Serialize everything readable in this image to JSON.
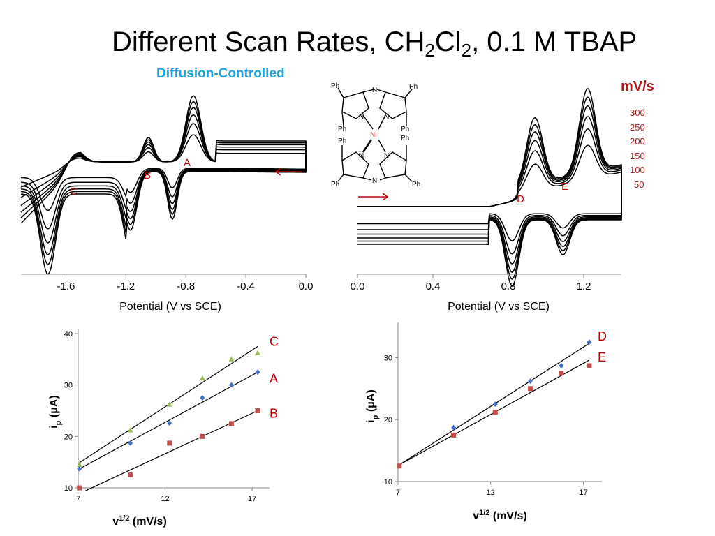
{
  "title": {
    "part1": "Different Scan Rates, CH",
    "sub1": "2",
    "part2": "Cl",
    "sub2": "2",
    "part3": ", 0.1 M TBAP"
  },
  "subtitle": "Diffusion-Controlled",
  "scan_rates": {
    "unit": "mV/s",
    "values": [
      "300",
      "250",
      "200",
      "150",
      "100",
      "50"
    ]
  },
  "molecule": {
    "substituent": "Ph",
    "bridge_atom": "N",
    "pyrrole_atom": "N",
    "metal": "Ni"
  },
  "colors": {
    "title": "#000000",
    "subtitle": "#1aa3e0",
    "annotation": "#b01c1c",
    "series_blue": "#4472c4",
    "series_red": "#c0504d",
    "series_green": "#9bbb59"
  },
  "chart_data": [
    {
      "type": "line",
      "xlabel": "Potential (V vs SCE)",
      "x_ticks": [
        "-1.6",
        "-1.2",
        "-0.8",
        "-0.4",
        "0.0"
      ],
      "xlim": [
        -1.9,
        0.0
      ],
      "scan_direction_arrow": "right-to-left",
      "peak_labels": [
        "A",
        "B",
        "C"
      ],
      "series": [
        {
          "scan_rate": 300,
          "y_scale": 1.0
        },
        {
          "scan_rate": 250,
          "y_scale": 0.91
        },
        {
          "scan_rate": 200,
          "y_scale": 0.82
        },
        {
          "scan_rate": 150,
          "y_scale": 0.71
        },
        {
          "scan_rate": 100,
          "y_scale": 0.58
        },
        {
          "scan_rate": 50,
          "y_scale": 0.41
        }
      ],
      "grid": false
    },
    {
      "type": "line",
      "xlabel": "Potential (V vs SCE)",
      "x_ticks": [
        "0.0",
        "0.4",
        "0.8",
        "1.2"
      ],
      "xlim": [
        0.0,
        1.4
      ],
      "scan_direction_arrow": "left-to-right",
      "peak_labels": [
        "D",
        "E"
      ],
      "series": [
        {
          "scan_rate": 300,
          "y_scale": 1.0
        },
        {
          "scan_rate": 250,
          "y_scale": 0.91
        },
        {
          "scan_rate": 200,
          "y_scale": 0.82
        },
        {
          "scan_rate": 150,
          "y_scale": 0.71
        },
        {
          "scan_rate": 100,
          "y_scale": 0.58
        },
        {
          "scan_rate": 50,
          "y_scale": 0.41
        }
      ],
      "grid": false
    },
    {
      "type": "scatter",
      "xlabel": "v1/2 (mV/s)",
      "ylabel": "ip (μA)",
      "x_ticks": [
        "7",
        "12",
        "17"
      ],
      "y_ticks": [
        "10",
        "20",
        "30",
        "40"
      ],
      "xlim": [
        7,
        18
      ],
      "ylim": [
        10,
        40
      ],
      "grid": false,
      "series": [
        {
          "name": "C",
          "color": "#9bbb59",
          "marker": "triangle",
          "x": [
            7.07,
            10.0,
            12.25,
            14.14,
            15.81,
            17.32
          ],
          "y": [
            14.5,
            21.2,
            26.2,
            31.3,
            35.0,
            36.2
          ],
          "fit": [
            [
              7.07,
              14.9
            ],
            [
              17.32,
              37.5
            ]
          ]
        },
        {
          "name": "A",
          "color": "#4472c4",
          "marker": "diamond",
          "x": [
            7.07,
            10.0,
            12.25,
            14.14,
            15.81,
            17.32
          ],
          "y": [
            13.7,
            18.7,
            22.6,
            27.5,
            30.0,
            32.5
          ],
          "fit": [
            [
              7.07,
              13.7
            ],
            [
              17.32,
              32.5
            ]
          ]
        },
        {
          "name": "B",
          "color": "#c0504d",
          "marker": "square",
          "x": [
            7.07,
            10.0,
            12.25,
            14.14,
            15.81,
            17.32
          ],
          "y": [
            10.0,
            12.5,
            18.7,
            20.0,
            22.5,
            25.0
          ],
          "fit": [
            [
              7.4,
              9.4
            ],
            [
              17.32,
              25.0
            ]
          ]
        }
      ]
    },
    {
      "type": "scatter",
      "xlabel": "v1/2 (mV/s)",
      "ylabel": "ip (μA)",
      "x_ticks": [
        "7",
        "12",
        "17"
      ],
      "y_ticks": [
        "10",
        "20",
        "30"
      ],
      "xlim": [
        7,
        18
      ],
      "ylim": [
        10,
        35
      ],
      "grid": false,
      "series": [
        {
          "name": "D",
          "color": "#4472c4",
          "marker": "diamond",
          "x": [
            7.07,
            10.0,
            12.25,
            14.14,
            15.81,
            17.32
          ],
          "y": [
            12.5,
            18.7,
            22.5,
            26.2,
            28.7,
            32.5
          ],
          "fit": [
            [
              7.07,
              12.7
            ],
            [
              17.32,
              32.3
            ]
          ]
        },
        {
          "name": "E",
          "color": "#c0504d",
          "marker": "square",
          "x": [
            7.07,
            10.0,
            12.25,
            14.14,
            15.81,
            17.32
          ],
          "y": [
            12.5,
            17.5,
            21.2,
            25.0,
            27.5,
            28.7
          ],
          "fit": [
            [
              7.07,
              12.7
            ],
            [
              17.32,
              29.6
            ]
          ]
        }
      ]
    }
  ]
}
